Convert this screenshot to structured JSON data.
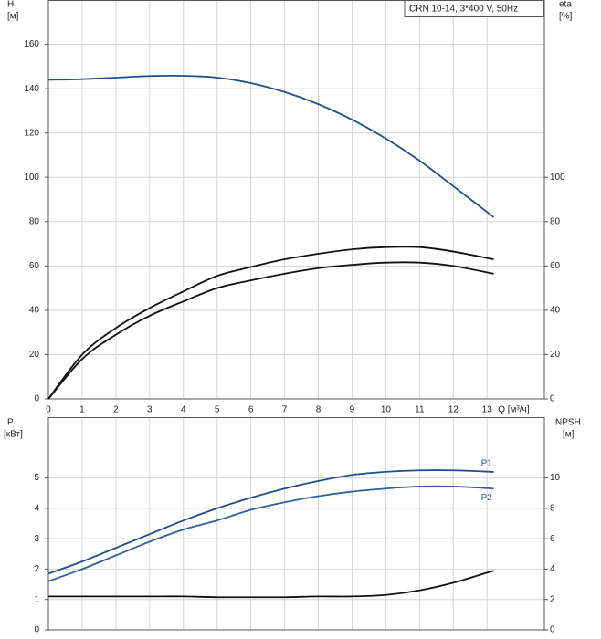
{
  "chart_data": [
    {
      "type": "line",
      "title": "CRN 10-14, 3*400 V, 50Hz",
      "ylabel": [
        "H",
        "[м]"
      ],
      "y2label": [
        "eta",
        "[%]"
      ],
      "xlabel": "Q [м³/ч]",
      "x": [
        0,
        1,
        2,
        3,
        4,
        5,
        6,
        7,
        8,
        9,
        10,
        11,
        12,
        13.2
      ],
      "xlim": [
        0,
        14.7
      ],
      "xticks": [
        0,
        1,
        2,
        3,
        4,
        5,
        6,
        7,
        8,
        9,
        10,
        11,
        12,
        13
      ],
      "xtick_labels": true,
      "ylim": [
        0,
        180
      ],
      "yticks": [
        0,
        20,
        40,
        60,
        80,
        100,
        120,
        140,
        160
      ],
      "y2lim": [
        0,
        180
      ],
      "y2ticks": [
        0,
        20,
        40,
        60,
        80,
        100
      ],
      "grid": true,
      "series": [
        {
          "color": "#1f4e8c",
          "values": [
            144,
            144.3,
            145,
            145.7,
            145.8,
            145,
            142.5,
            138.5,
            133,
            126,
            117.5,
            107.5,
            96,
            82
          ]
        },
        {
          "color": "#111111",
          "axis": "y2",
          "values": [
            0,
            20,
            32,
            41,
            48.5,
            55.5,
            59.5,
            63,
            65.5,
            67.5,
            68.5,
            68.5,
            66.5,
            63
          ]
        },
        {
          "color": "#111111",
          "axis": "y2",
          "values": [
            0,
            18,
            29,
            37.5,
            44,
            50,
            53.5,
            56.5,
            59,
            60.5,
            61.5,
            61.5,
            60,
            56.5
          ]
        }
      ]
    },
    {
      "type": "line",
      "ylabel": [
        "P",
        "[кВт]"
      ],
      "y2label": [
        "NPSH",
        "[м]"
      ],
      "x": [
        0,
        1,
        2,
        3,
        4,
        5,
        6,
        7,
        8,
        9,
        10,
        11,
        12,
        13.2
      ],
      "xlim": [
        0,
        14.7
      ],
      "xticks": [
        0,
        1,
        2,
        3,
        4,
        5,
        6,
        7,
        8,
        9,
        10,
        11,
        12,
        13
      ],
      "xtick_labels": false,
      "ylim": [
        0,
        7
      ],
      "yticks": [
        0,
        1,
        2,
        3,
        4,
        5
      ],
      "y2lim": [
        0,
        14
      ],
      "y2ticks": [
        0,
        2,
        4,
        6,
        8,
        10
      ],
      "grid": true,
      "series": [
        {
          "name": "P1",
          "color": "#1f4e8c",
          "values": [
            1.85,
            2.25,
            2.7,
            3.15,
            3.6,
            4.0,
            4.35,
            4.65,
            4.9,
            5.1,
            5.2,
            5.25,
            5.25,
            5.2
          ]
        },
        {
          "name": "P2",
          "color": "#2f5f9e",
          "values": [
            1.6,
            2.0,
            2.45,
            2.9,
            3.3,
            3.6,
            3.95,
            4.2,
            4.4,
            4.55,
            4.65,
            4.72,
            4.72,
            4.65
          ]
        },
        {
          "color": "#111111",
          "axis": "y2",
          "values": [
            2.2,
            2.2,
            2.2,
            2.2,
            2.2,
            2.15,
            2.15,
            2.15,
            2.2,
            2.2,
            2.3,
            2.6,
            3.1,
            3.9
          ]
        }
      ]
    }
  ]
}
